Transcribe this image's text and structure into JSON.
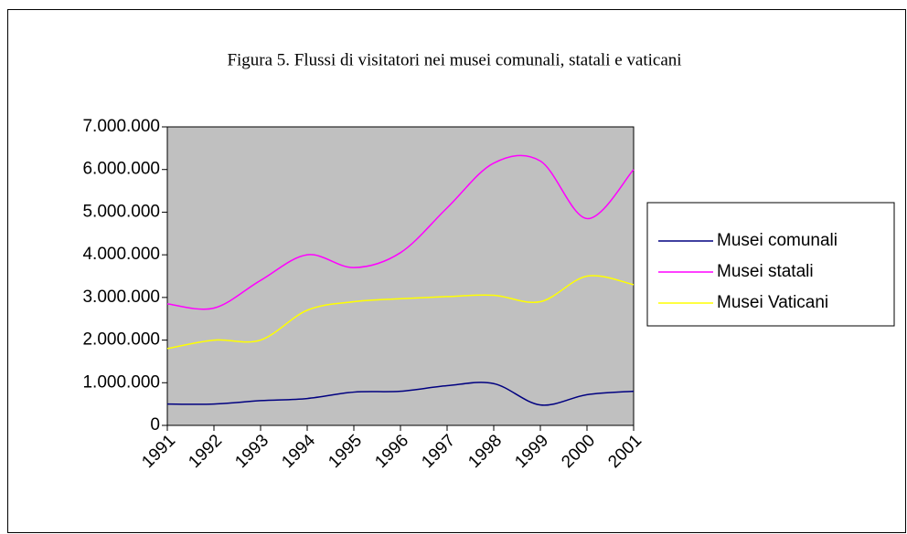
{
  "chart_data": {
    "type": "line",
    "title": "Figura 5.  Flussi di visitatori nei musei comunali, statali e vaticani",
    "categories": [
      "1991",
      "1992",
      "1993",
      "1994",
      "1995",
      "1996",
      "1997",
      "1998",
      "1999",
      "2000",
      "2001"
    ],
    "series": [
      {
        "name": "Musei comunali",
        "color": "#000080",
        "values": [
          500000,
          500000,
          580000,
          630000,
          780000,
          800000,
          930000,
          980000,
          480000,
          720000,
          800000
        ]
      },
      {
        "name": "Musei statali",
        "color": "#ff00ff",
        "values": [
          2850000,
          2750000,
          3400000,
          4000000,
          3700000,
          4050000,
          5100000,
          6150000,
          6200000,
          4850000,
          6000000
        ]
      },
      {
        "name": "Musei Vaticani",
        "color": "#ffff00",
        "values": [
          1800000,
          2000000,
          2000000,
          2700000,
          2900000,
          2970000,
          3020000,
          3050000,
          2900000,
          3500000,
          3300000
        ]
      }
    ],
    "ylim": [
      0,
      7000000
    ],
    "yticks": [
      0,
      {
        "value": 1000000,
        "label": "1.000.000"
      },
      {
        "value": 2000000,
        "label": "2.000.000"
      },
      {
        "value": 3000000,
        "label": "3.000.000"
      },
      {
        "value": 4000000,
        "label": "4.000.000"
      },
      {
        "value": 5000000,
        "label": "5.000.000"
      },
      {
        "value": 6000000,
        "label": "6.000.000"
      },
      {
        "value": 7000000,
        "label": "7.000.000"
      }
    ],
    "legend": "right",
    "plot_background": "#c0c0c0"
  }
}
